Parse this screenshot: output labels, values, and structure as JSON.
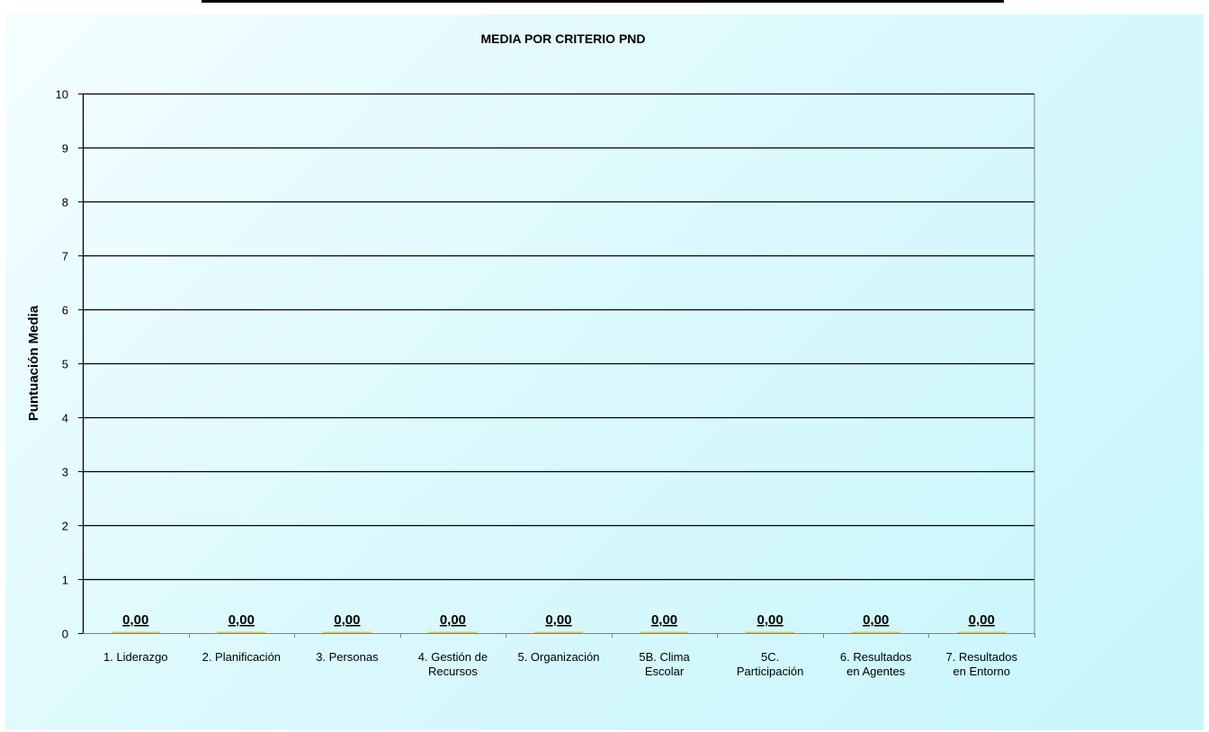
{
  "chart_data": {
    "type": "bar",
    "title": "MEDIA POR CRITERIO PND",
    "xlabel": "",
    "ylabel": "Puntuación Media",
    "ylim": [
      0,
      10
    ],
    "yticks": [
      "0",
      "1",
      "2",
      "3",
      "4",
      "5",
      "6",
      "7",
      "8",
      "9",
      "10"
    ],
    "categories": [
      [
        "1. Liderazgo"
      ],
      [
        "2. Planificación"
      ],
      [
        "3. Personas"
      ],
      [
        "4. Gestión de",
        "Recursos"
      ],
      [
        "5. Organización"
      ],
      [
        "5B. Clima",
        "Escolar"
      ],
      [
        "5C.",
        "Participación"
      ],
      [
        "6. Resultados",
        "en Agentes"
      ],
      [
        "7. Resultados",
        "en Entorno"
      ]
    ],
    "values": [
      0,
      0,
      0,
      0,
      0,
      0,
      0,
      0,
      0
    ],
    "data_labels": [
      "0,00",
      "0,00",
      "0,00",
      "0,00",
      "0,00",
      "0,00",
      "0,00",
      "0,00",
      "0,00"
    ],
    "grid": true,
    "bar_color": "#e8c840",
    "background": "#d6f8fc"
  }
}
